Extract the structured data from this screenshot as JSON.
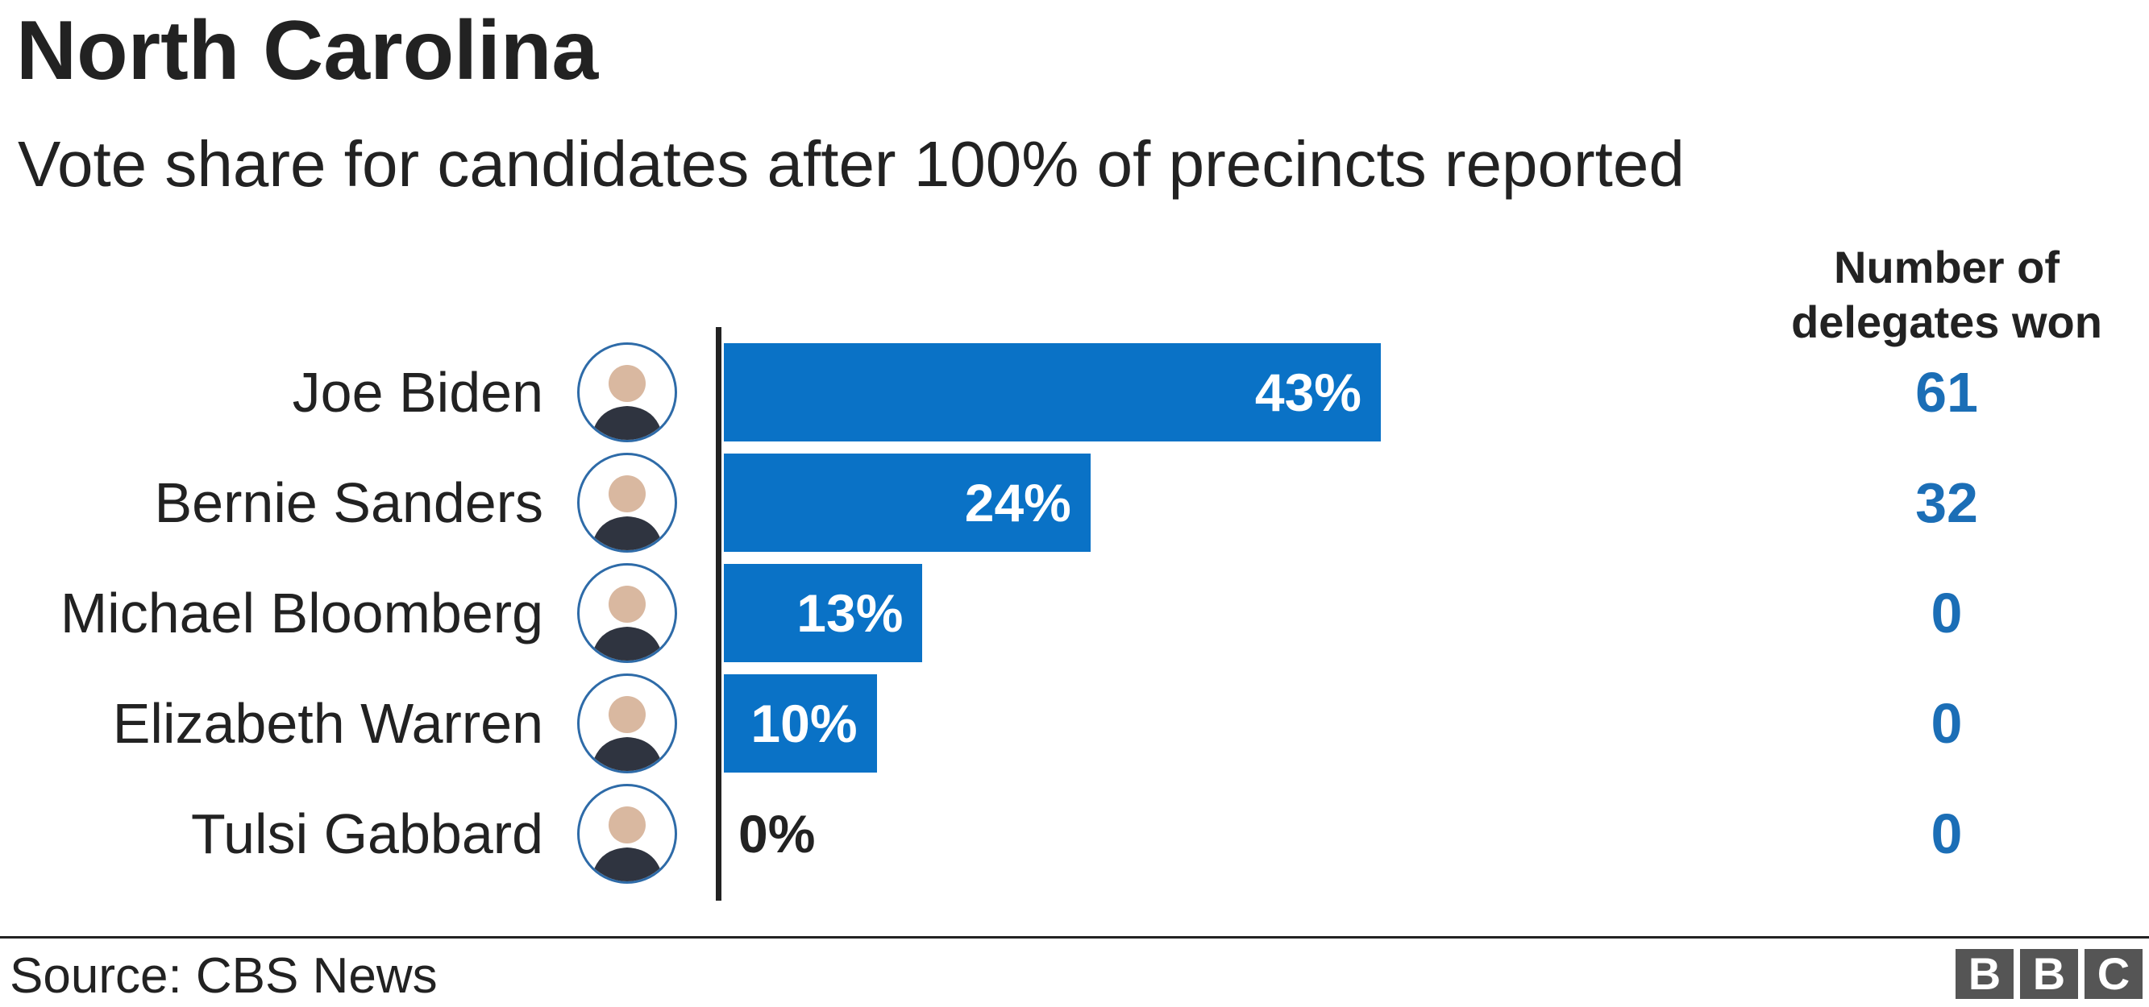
{
  "title": "North Carolina",
  "subtitle": "Vote share for candidates after 100% of precincts reported",
  "delegates_header": [
    "Number of",
    "delegates won"
  ],
  "source": "Source: CBS News",
  "logo_letters": [
    "B",
    "B",
    "C"
  ],
  "colors": {
    "bar": "#0a72c6",
    "delegate_value": "#1b6eb6",
    "text": "#222222",
    "avatar_border": "#2e6ba8",
    "logo": "#555555"
  },
  "chart_data": {
    "type": "bar",
    "orientation": "horizontal",
    "title": "North Carolina",
    "subtitle": "Vote share for candidates after 100% of precincts reported",
    "categories": [
      "Joe Biden",
      "Bernie Sanders",
      "Michael Bloomberg",
      "Elizabeth Warren",
      "Tulsi Gabbard"
    ],
    "values": [
      43,
      24,
      13,
      10,
      0
    ],
    "value_labels": [
      "43%",
      "24%",
      "13%",
      "10%",
      "0%"
    ],
    "unit": "%",
    "xlim": [
      0,
      100
    ],
    "grid": false,
    "extra_column": {
      "header": "Number of delegates won",
      "values": [
        61,
        32,
        0,
        0,
        0
      ]
    }
  }
}
